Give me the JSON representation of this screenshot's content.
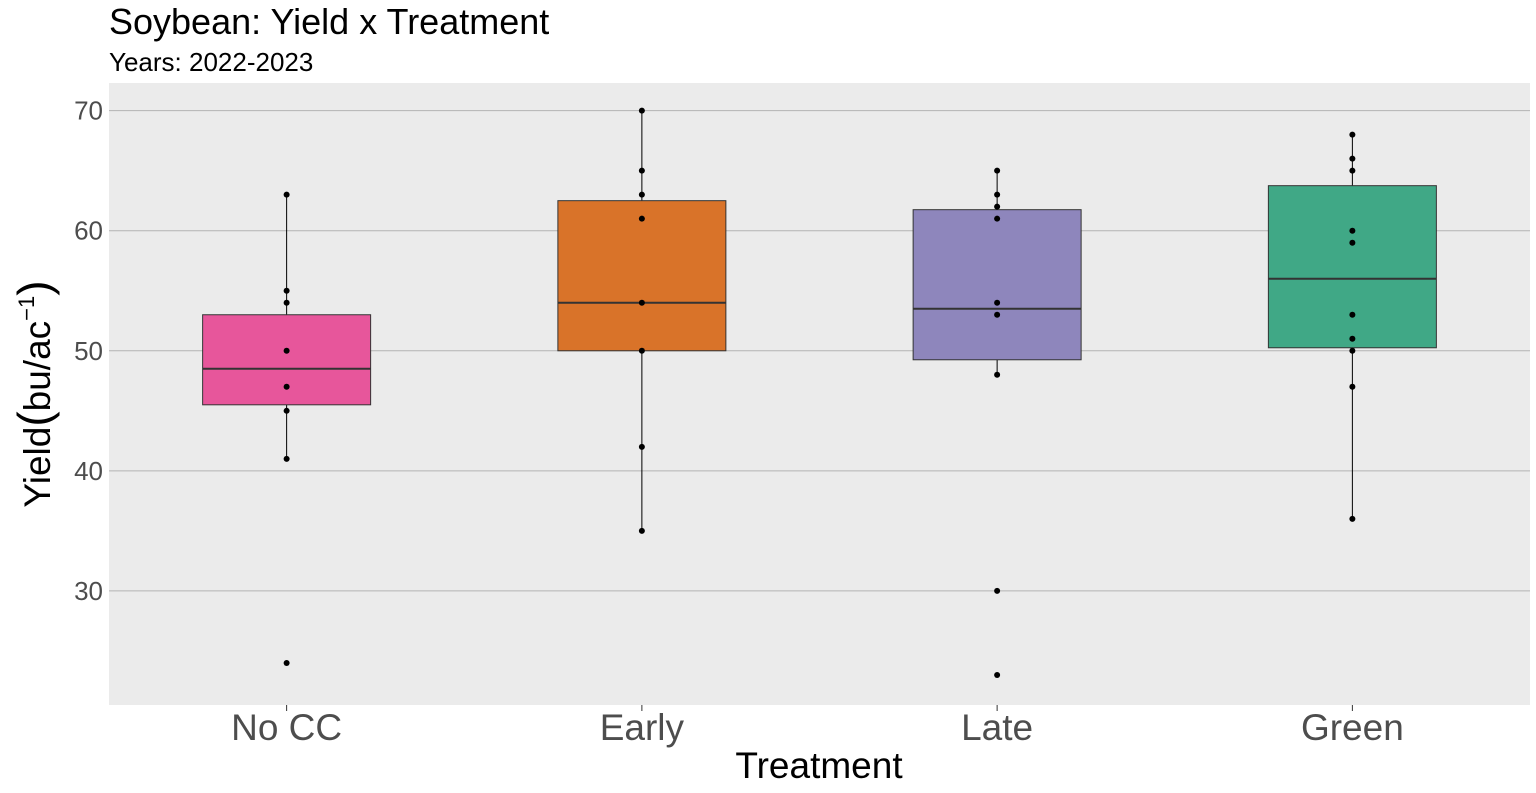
{
  "chart_data": {
    "type": "box",
    "title": "Soybean: Yield x Treatment",
    "subtitle": "Years: 2022-2023",
    "xlabel": "Treatment",
    "ylabel": {
      "main": "Yield",
      "unit": "bu/ac",
      "exponent": "−1"
    },
    "ylim": [
      20.5,
      72.3
    ],
    "yticks": [
      30,
      40,
      50,
      60,
      70
    ],
    "grid": {
      "major_y": true,
      "background": "#ebebeb",
      "gridline": "#b3b3b3"
    },
    "categories": [
      "No CC",
      "Early",
      "Late",
      "Green"
    ],
    "colors": [
      "#e7569b",
      "#d97329",
      "#8e86bc",
      "#40a886"
    ],
    "boxes": [
      {
        "name": "No CC",
        "whisker_low": 41,
        "q1": 45.5,
        "median": 48.5,
        "q3": 53,
        "whisker_high": 63
      },
      {
        "name": "Early",
        "whisker_low": 35,
        "q1": 50,
        "median": 54,
        "q3": 62.5,
        "whisker_high": 70
      },
      {
        "name": "Late",
        "whisker_low": 48,
        "q1": 49.25,
        "median": 53.5,
        "q3": 61.75,
        "whisker_high": 65
      },
      {
        "name": "Green",
        "whisker_low": 36,
        "q1": 50.25,
        "median": 56,
        "q3": 63.75,
        "whisker_high": 68
      }
    ],
    "points": [
      [
        63,
        55,
        54,
        50,
        47,
        45,
        41,
        24
      ],
      [
        70,
        65,
        63,
        61,
        54,
        50,
        42,
        35
      ],
      [
        65,
        63,
        62,
        61,
        54,
        53,
        48,
        30,
        23
      ],
      [
        68,
        66,
        65,
        60,
        59,
        53,
        51,
        50,
        47,
        36
      ]
    ]
  }
}
